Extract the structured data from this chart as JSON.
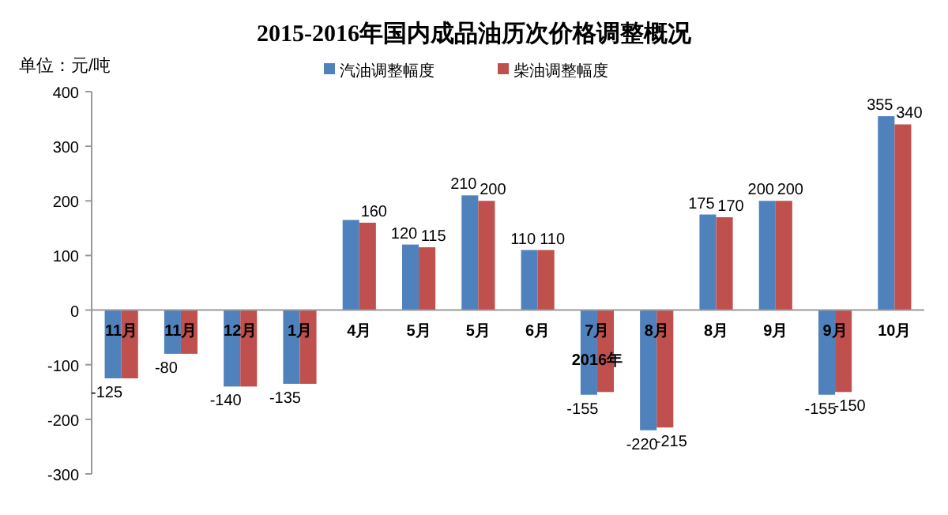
{
  "chart_data": {
    "type": "bar",
    "title": "2015-2016年国内成品油历次价格调整概况",
    "ylabel": "单位：元/吨",
    "categories": [
      "11月",
      "11月",
      "12月",
      "1月",
      "4月",
      "5月",
      "5月",
      "6月",
      "7月",
      "8月",
      "8月",
      "9月",
      "9月",
      "10月"
    ],
    "series": [
      {
        "name": "汽油调整幅度",
        "color": "#4f81bd",
        "values": [
          -125,
          -80,
          -140,
          -135,
          165,
          120,
          210,
          110,
          -155,
          -220,
          175,
          200,
          -155,
          355
        ],
        "value_labels": [
          "-125",
          "-80",
          "-140",
          "-135",
          null,
          "120",
          "210",
          "110",
          "-155",
          "-220",
          "175",
          "200",
          "-155",
          "355"
        ]
      },
      {
        "name": "柴油调整幅度",
        "color": "#c0504d",
        "values": [
          -125,
          -80,
          -140,
          -135,
          160,
          115,
          200,
          110,
          -150,
          -215,
          170,
          200,
          -150,
          340
        ],
        "value_labels": [
          null,
          null,
          null,
          null,
          "160",
          "115",
          "200",
          "110",
          null,
          "-215",
          "170",
          "200",
          "-150",
          "340"
        ]
      }
    ],
    "ylim": [
      -300,
      400
    ],
    "yticks": [
      -300,
      -200,
      -100,
      0,
      100,
      200,
      300,
      400
    ],
    "annotations": [
      {
        "text": "2016年",
        "x": "7月",
        "y": -100
      }
    ],
    "legend": "top",
    "grid": false
  }
}
